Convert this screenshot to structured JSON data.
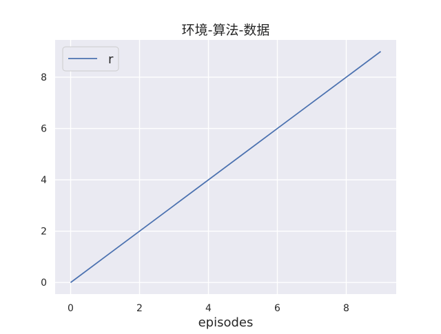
{
  "chart_data": {
    "type": "line",
    "title": "环境-算法-数据",
    "xlabel": "episodes",
    "ylabel": "",
    "x": [
      0,
      1,
      2,
      3,
      4,
      5,
      6,
      7,
      8,
      9
    ],
    "series": [
      {
        "name": "r",
        "values": [
          0,
          1,
          2,
          3,
          4,
          5,
          6,
          7,
          8,
          9
        ]
      }
    ],
    "xlim": [
      -0.45,
      9.45
    ],
    "ylim": [
      -0.45,
      9.45
    ],
    "xticks": [
      0,
      2,
      4,
      6,
      8
    ],
    "yticks": [
      0,
      2,
      4,
      6,
      8
    ],
    "xtick_labels": [
      "0",
      "2",
      "4",
      "6",
      "8"
    ],
    "ytick_labels": [
      "0",
      "2",
      "4",
      "6",
      "8"
    ],
    "grid": true,
    "legend_position": "top-left",
    "colors": {
      "plot_background": "#EAEAF2",
      "grid": "#FFFFFF",
      "series": [
        "#4C72B0"
      ]
    }
  }
}
